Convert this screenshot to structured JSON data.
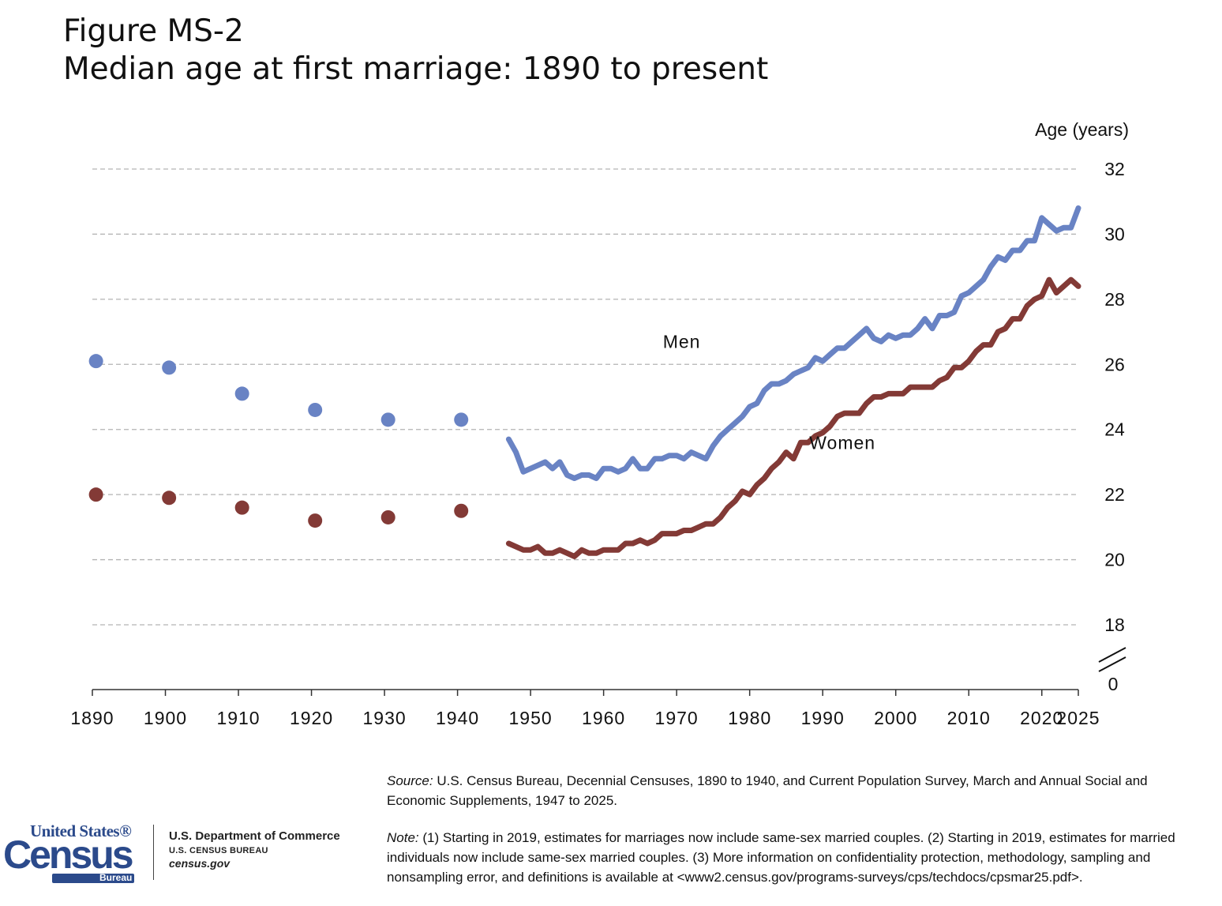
{
  "title": {
    "figure": "Figure MS-2",
    "subtitle": "Median age at first marriage: 1890 to present"
  },
  "colors": {
    "men": "#6983C4",
    "women": "#833A36",
    "grid": "#b3b3b3",
    "axis": "#333333"
  },
  "chart_data": {
    "type": "line",
    "title": "Median age at first marriage: 1890 to present",
    "ylabel": "Age (years)",
    "xlabel": "",
    "ylim": [
      18,
      32
    ],
    "y_ticks": [
      "32",
      "30",
      "28",
      "26",
      "24",
      "22",
      "20",
      "18"
    ],
    "y_tick_values": [
      32,
      30,
      28,
      26,
      24,
      22,
      20,
      18
    ],
    "y_axis_break_label": "0",
    "x_ticks": [
      "1890",
      "1900",
      "1910",
      "1920",
      "1930",
      "1940",
      "1950",
      "1960",
      "1970",
      "1980",
      "1990",
      "2000",
      "2010",
      "2020",
      "2025"
    ],
    "x_tick_values": [
      1890,
      1900,
      1910,
      1920,
      1930,
      1940,
      1950,
      1960,
      1970,
      1980,
      1990,
      2000,
      2010,
      2020,
      2025
    ],
    "grid": true,
    "series": [
      {
        "name": "Men",
        "key": "men",
        "label_year": 1970.7,
        "label_value": 26.5,
        "decennial": [
          [
            1890,
            26.1
          ],
          [
            1900,
            25.9
          ],
          [
            1910,
            25.1
          ],
          [
            1920,
            24.6
          ],
          [
            1930,
            24.3
          ],
          [
            1940,
            24.3
          ]
        ],
        "annual": [
          [
            1947,
            23.7
          ],
          [
            1948,
            23.3
          ],
          [
            1949,
            22.7
          ],
          [
            1950,
            22.8
          ],
          [
            1951,
            22.9
          ],
          [
            1952,
            23.0
          ],
          [
            1953,
            22.8
          ],
          [
            1954,
            23.0
          ],
          [
            1955,
            22.6
          ],
          [
            1956,
            22.5
          ],
          [
            1957,
            22.6
          ],
          [
            1958,
            22.6
          ],
          [
            1959,
            22.5
          ],
          [
            1960,
            22.8
          ],
          [
            1961,
            22.8
          ],
          [
            1962,
            22.7
          ],
          [
            1963,
            22.8
          ],
          [
            1964,
            23.1
          ],
          [
            1965,
            22.8
          ],
          [
            1966,
            22.8
          ],
          [
            1967,
            23.1
          ],
          [
            1968,
            23.1
          ],
          [
            1969,
            23.2
          ],
          [
            1970,
            23.2
          ],
          [
            1971,
            23.1
          ],
          [
            1972,
            23.3
          ],
          [
            1973,
            23.2
          ],
          [
            1974,
            23.1
          ],
          [
            1975,
            23.5
          ],
          [
            1976,
            23.8
          ],
          [
            1977,
            24.0
          ],
          [
            1978,
            24.2
          ],
          [
            1979,
            24.4
          ],
          [
            1980,
            24.7
          ],
          [
            1981,
            24.8
          ],
          [
            1982,
            25.2
          ],
          [
            1983,
            25.4
          ],
          [
            1984,
            25.4
          ],
          [
            1985,
            25.5
          ],
          [
            1986,
            25.7
          ],
          [
            1987,
            25.8
          ],
          [
            1988,
            25.9
          ],
          [
            1989,
            26.2
          ],
          [
            1990,
            26.1
          ],
          [
            1991,
            26.3
          ],
          [
            1992,
            26.5
          ],
          [
            1993,
            26.5
          ],
          [
            1994,
            26.7
          ],
          [
            1995,
            26.9
          ],
          [
            1996,
            27.1
          ],
          [
            1997,
            26.8
          ],
          [
            1998,
            26.7
          ],
          [
            1999,
            26.9
          ],
          [
            2000,
            26.8
          ],
          [
            2001,
            26.9
          ],
          [
            2002,
            26.9
          ],
          [
            2003,
            27.1
          ],
          [
            2004,
            27.4
          ],
          [
            2005,
            27.1
          ],
          [
            2006,
            27.5
          ],
          [
            2007,
            27.5
          ],
          [
            2008,
            27.6
          ],
          [
            2009,
            28.1
          ],
          [
            2010,
            28.2
          ],
          [
            2011,
            28.4
          ],
          [
            2012,
            28.6
          ],
          [
            2013,
            29.0
          ],
          [
            2014,
            29.3
          ],
          [
            2015,
            29.2
          ],
          [
            2016,
            29.5
          ],
          [
            2017,
            29.5
          ],
          [
            2018,
            29.8
          ],
          [
            2019,
            29.8
          ],
          [
            2020,
            30.5
          ],
          [
            2021,
            30.3
          ],
          [
            2022,
            30.1
          ],
          [
            2023,
            30.2
          ],
          [
            2024,
            30.2
          ],
          [
            2025,
            30.8
          ]
        ]
      },
      {
        "name": "Women",
        "key": "women",
        "label_year": 1992.7,
        "label_value": 23.4,
        "decennial": [
          [
            1890,
            22.0
          ],
          [
            1900,
            21.9
          ],
          [
            1910,
            21.6
          ],
          [
            1920,
            21.2
          ],
          [
            1930,
            21.3
          ],
          [
            1940,
            21.5
          ]
        ],
        "annual": [
          [
            1947,
            20.5
          ],
          [
            1948,
            20.4
          ],
          [
            1949,
            20.3
          ],
          [
            1950,
            20.3
          ],
          [
            1951,
            20.4
          ],
          [
            1952,
            20.2
          ],
          [
            1953,
            20.2
          ],
          [
            1954,
            20.3
          ],
          [
            1955,
            20.2
          ],
          [
            1956,
            20.1
          ],
          [
            1957,
            20.3
          ],
          [
            1958,
            20.2
          ],
          [
            1959,
            20.2
          ],
          [
            1960,
            20.3
          ],
          [
            1961,
            20.3
          ],
          [
            1962,
            20.3
          ],
          [
            1963,
            20.5
          ],
          [
            1964,
            20.5
          ],
          [
            1965,
            20.6
          ],
          [
            1966,
            20.5
          ],
          [
            1967,
            20.6
          ],
          [
            1968,
            20.8
          ],
          [
            1969,
            20.8
          ],
          [
            1970,
            20.8
          ],
          [
            1971,
            20.9
          ],
          [
            1972,
            20.9
          ],
          [
            1973,
            21.0
          ],
          [
            1974,
            21.1
          ],
          [
            1975,
            21.1
          ],
          [
            1976,
            21.3
          ],
          [
            1977,
            21.6
          ],
          [
            1978,
            21.8
          ],
          [
            1979,
            22.1
          ],
          [
            1980,
            22.0
          ],
          [
            1981,
            22.3
          ],
          [
            1982,
            22.5
          ],
          [
            1983,
            22.8
          ],
          [
            1984,
            23.0
          ],
          [
            1985,
            23.3
          ],
          [
            1986,
            23.1
          ],
          [
            1987,
            23.6
          ],
          [
            1988,
            23.6
          ],
          [
            1989,
            23.8
          ],
          [
            1990,
            23.9
          ],
          [
            1991,
            24.1
          ],
          [
            1992,
            24.4
          ],
          [
            1993,
            24.5
          ],
          [
            1994,
            24.5
          ],
          [
            1995,
            24.5
          ],
          [
            1996,
            24.8
          ],
          [
            1997,
            25.0
          ],
          [
            1998,
            25.0
          ],
          [
            1999,
            25.1
          ],
          [
            2000,
            25.1
          ],
          [
            2001,
            25.1
          ],
          [
            2002,
            25.3
          ],
          [
            2003,
            25.3
          ],
          [
            2004,
            25.3
          ],
          [
            2005,
            25.3
          ],
          [
            2006,
            25.5
          ],
          [
            2007,
            25.6
          ],
          [
            2008,
            25.9
          ],
          [
            2009,
            25.9
          ],
          [
            2010,
            26.1
          ],
          [
            2011,
            26.4
          ],
          [
            2012,
            26.6
          ],
          [
            2013,
            26.6
          ],
          [
            2014,
            27.0
          ],
          [
            2015,
            27.1
          ],
          [
            2016,
            27.4
          ],
          [
            2017,
            27.4
          ],
          [
            2018,
            27.8
          ],
          [
            2019,
            28.0
          ],
          [
            2020,
            28.1
          ],
          [
            2021,
            28.6
          ],
          [
            2022,
            28.2
          ],
          [
            2023,
            28.4
          ],
          [
            2024,
            28.6
          ],
          [
            2025,
            28.4
          ]
        ]
      }
    ]
  },
  "footer": {
    "source_label": "Source:",
    "source_text": " U.S. Census Bureau, Decennial Censuses, 1890 to 1940, and Current Population Survey, March and Annual Social and Economic Supplements, 1947 to 2025.",
    "note_label": "Note:",
    "note_text": " (1) Starting in 2019, estimates for marriages now include same-sex married couples. (2) Starting in 2019, estimates for married individuals now include same-sex married couples. (3) More information on confidentiality protection, methodology, sampling and nonsampling error, and definitions is available at <www2.census.gov/programs-surveys/cps/techdocs/cpsmar25.pdf>.",
    "logo_top": "United States®",
    "logo_main": "Census",
    "logo_bureau": "Bureau",
    "dept_name": "U.S. Department of Commerce",
    "dept_bureau": "U.S. CENSUS BUREAU",
    "dept_url": "census.gov"
  }
}
